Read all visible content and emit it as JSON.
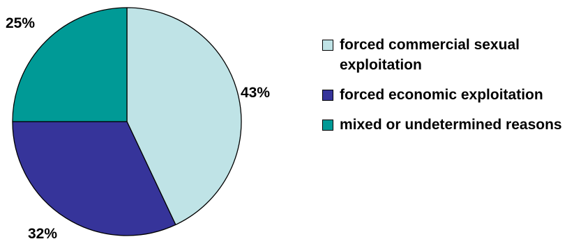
{
  "chart_data": {
    "type": "pie",
    "title": "",
    "categories": [
      "forced commercial sexual exploitation",
      "forced economic exploitation",
      "mixed or undetermined reasons"
    ],
    "values": [
      43,
      32,
      25
    ],
    "value_labels": [
      "43%",
      "32%",
      "25%"
    ],
    "colors": [
      "#bfe3e6",
      "#36349a",
      "#009a96"
    ],
    "legend_position": "right"
  }
}
